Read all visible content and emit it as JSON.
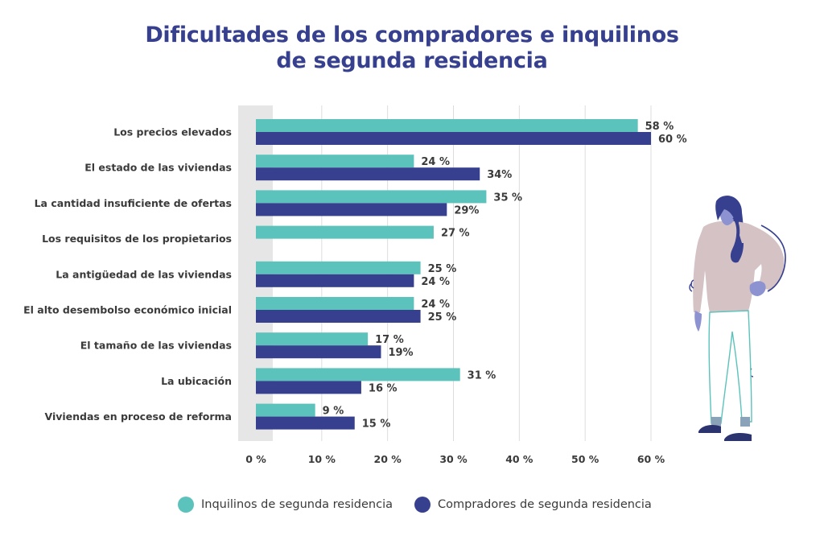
{
  "colors": {
    "title": "#36408f",
    "inquilinos": "#5bc2bc",
    "compradores": "#36408f",
    "grid": "#dddddd",
    "band": "#e6e6e6",
    "text": "#3a3a3a"
  },
  "chart_data": {
    "type": "bar",
    "orientation": "horizontal",
    "title": [
      "Dificultades de los compradores e inquilinos",
      "de segunda residencia"
    ],
    "categories": [
      "Los precios elevados",
      "El estado de las viviendas",
      "La cantidad insuficiente de ofertas",
      "Los requisitos de los propietarios",
      "La antigüedad de las viviendas",
      "El alto desembolso económico inicial",
      "El tamaño de las viviendas",
      "La ubicación",
      "Viviendas en proceso de reforma"
    ],
    "series": [
      {
        "name": "Inquilinos de segunda residencia",
        "color": "#5bc2bc",
        "values": [
          58,
          24,
          35,
          27,
          25,
          24,
          17,
          31,
          9
        ],
        "labels": [
          "58 %",
          "24 %",
          "35 %",
          "27 %",
          "25 %",
          "24 %",
          "17 %",
          "31 %",
          "9 %"
        ]
      },
      {
        "name": "Compradores de segunda residencia",
        "color": "#36408f",
        "values": [
          60,
          34,
          29,
          null,
          24,
          25,
          19,
          16,
          15
        ],
        "labels": [
          "60 %",
          "34%",
          "29%",
          "",
          "24 %",
          "25 %",
          "19%",
          "16 %",
          "15 %"
        ]
      }
    ],
    "xlim": [
      0,
      60
    ],
    "xticks": [
      0,
      10,
      20,
      30,
      40,
      50,
      60
    ],
    "xtick_labels": [
      "0 %",
      "10 %",
      "20 %",
      "30 %",
      "40 %",
      "50 %",
      "60 %"
    ],
    "grid": true,
    "legend_position": "bottom"
  }
}
